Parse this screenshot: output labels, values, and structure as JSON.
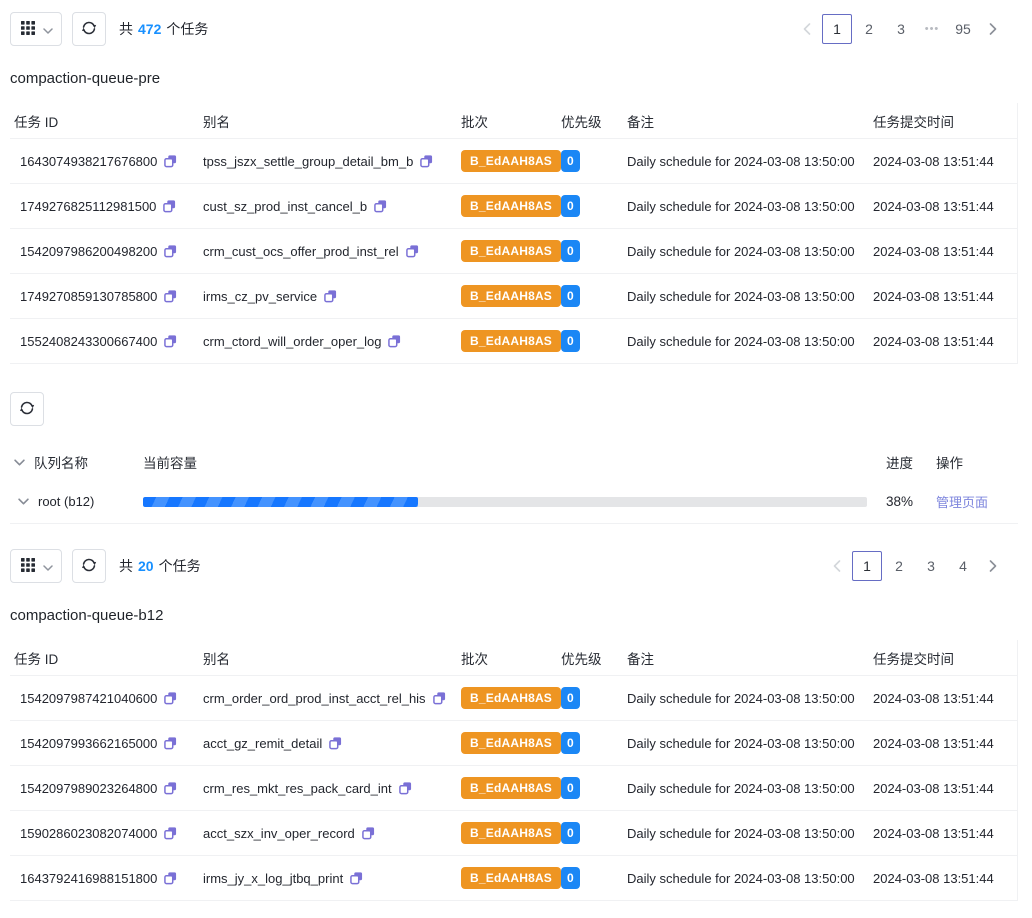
{
  "colors": {
    "accent_blue": "#1890ff",
    "badge_orange": "#ee9522",
    "badge_blue": "#1b87f5",
    "copy_purple": "#7a70d6",
    "link_indigo": "#7d85dd",
    "pagination_active": "#666dc4",
    "progress_fill": "#1677ff",
    "progress_track": "#e4e5e7"
  },
  "queue_pre": {
    "toolbar": {
      "total_prefix": "共",
      "total_count": "472",
      "total_suffix": "个任务"
    },
    "pagination": {
      "pages": [
        "1",
        "2",
        "3"
      ],
      "active_page": "1",
      "ellipsis": "•••",
      "last_page": "95"
    },
    "title": "compaction-queue-pre",
    "table": {
      "headers": [
        "任务 ID",
        "别名",
        "批次",
        "优先级",
        "备注",
        "任务提交时间"
      ],
      "rows": [
        {
          "task_id": "1643074938217676800",
          "alias": "tpss_jszx_settle_group_detail_bm_b",
          "batch": "B_EdAAH8AS",
          "priority": "0",
          "remark": "Daily schedule for 2024-03-08 13:50:00",
          "submitted": "2024-03-08 13:51:44"
        },
        {
          "task_id": "1749276825112981500",
          "alias": "cust_sz_prod_inst_cancel_b",
          "batch": "B_EdAAH8AS",
          "priority": "0",
          "remark": "Daily schedule for 2024-03-08 13:50:00",
          "submitted": "2024-03-08 13:51:44"
        },
        {
          "task_id": "1542097986200498200",
          "alias": "crm_cust_ocs_offer_prod_inst_rel",
          "batch": "B_EdAAH8AS",
          "priority": "0",
          "remark": "Daily schedule for 2024-03-08 13:50:00",
          "submitted": "2024-03-08 13:51:44"
        },
        {
          "task_id": "1749270859130785800",
          "alias": "irms_cz_pv_service",
          "batch": "B_EdAAH8AS",
          "priority": "0",
          "remark": "Daily schedule for 2024-03-08 13:50:00",
          "submitted": "2024-03-08 13:51:44"
        },
        {
          "task_id": "1552408243300667400",
          "alias": "crm_ctord_will_order_oper_log",
          "batch": "B_EdAAH8AS",
          "priority": "0",
          "remark": "Daily schedule for 2024-03-08 13:50:00",
          "submitted": "2024-03-08 13:51:44"
        }
      ]
    }
  },
  "queue_panel": {
    "headers": {
      "name": "队列名称",
      "capacity": "当前容量",
      "progress": "进度",
      "action": "操作"
    },
    "row": {
      "name": "root (b12)",
      "progress_value": 38,
      "progress_label": "38%",
      "action_label": "管理页面"
    }
  },
  "queue_b12": {
    "toolbar": {
      "total_prefix": "共",
      "total_count": "20",
      "total_suffix": "个任务"
    },
    "pagination": {
      "pages": [
        "1",
        "2",
        "3",
        "4"
      ],
      "active_page": "1"
    },
    "title": "compaction-queue-b12",
    "table": {
      "headers": [
        "任务 ID",
        "别名",
        "批次",
        "优先级",
        "备注",
        "任务提交时间"
      ],
      "rows": [
        {
          "task_id": "1542097987421040600",
          "alias": "crm_order_ord_prod_inst_acct_rel_his",
          "batch": "B_EdAAH8AS",
          "priority": "0",
          "remark": "Daily schedule for 2024-03-08 13:50:00",
          "submitted": "2024-03-08 13:51:44"
        },
        {
          "task_id": "1542097993662165000",
          "alias": "acct_gz_remit_detail",
          "batch": "B_EdAAH8AS",
          "priority": "0",
          "remark": "Daily schedule for 2024-03-08 13:50:00",
          "submitted": "2024-03-08 13:51:44"
        },
        {
          "task_id": "1542097989023264800",
          "alias": "crm_res_mkt_res_pack_card_int",
          "batch": "B_EdAAH8AS",
          "priority": "0",
          "remark": "Daily schedule for 2024-03-08 13:50:00",
          "submitted": "2024-03-08 13:51:44"
        },
        {
          "task_id": "1590286023082074000",
          "alias": "acct_szx_inv_oper_record",
          "batch": "B_EdAAH8AS",
          "priority": "0",
          "remark": "Daily schedule for 2024-03-08 13:50:00",
          "submitted": "2024-03-08 13:51:44"
        },
        {
          "task_id": "1643792416988151800",
          "alias": "irms_jy_x_log_jtbq_print",
          "batch": "B_EdAAH8AS",
          "priority": "0",
          "remark": "Daily schedule for 2024-03-08 13:50:00",
          "submitted": "2024-03-08 13:51:44"
        }
      ]
    }
  }
}
